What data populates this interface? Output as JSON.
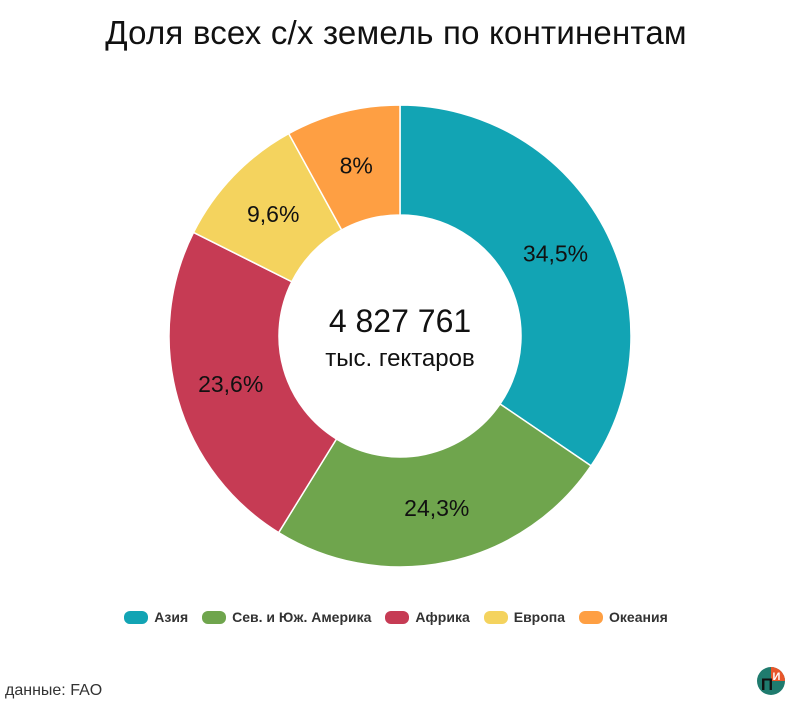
{
  "chart_data": {
    "type": "pie",
    "title": "Доля всех с/х земель по континентам",
    "center_value": "4 827 761",
    "center_unit": "тыс. гектаров",
    "categories": [
      "Азия",
      "Сев. и Юж. Америка",
      "Африка",
      "Европа",
      "Океания"
    ],
    "values": [
      34.5,
      24.3,
      23.6,
      9.6,
      8
    ],
    "value_labels": [
      "34,5%",
      "24,3%",
      "23,6%",
      "9,6%",
      "8%"
    ],
    "colors": [
      "#12a4b4",
      "#6fa54d",
      "#c63b54",
      "#f4d35e",
      "#fe9f43"
    ],
    "legend_position": "bottom"
  },
  "source": "данные: FAO",
  "logo": {
    "icon": "pi-logo-icon",
    "letters": [
      "П",
      "И"
    ]
  }
}
